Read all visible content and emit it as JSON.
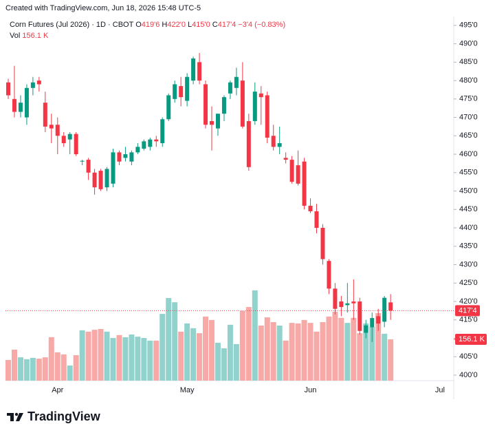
{
  "header": {
    "watermark": "Created with TradingView.com, Jun 18, 2026 15:48 UTC-5",
    "symbol": "Corn Futures (Jul 2026) · 1D · CBOT",
    "open_label": "O",
    "open": "419'6",
    "high_label": "H",
    "high": "422'0",
    "low_label": "L",
    "low": "415'0",
    "close_label": "C",
    "close": "417'4",
    "change": "−3'4 (−0.83%)",
    "volume_label": "Vol"
  },
  "footer": {
    "logo": "TradingView"
  },
  "chart_data": {
    "type": "candlestick",
    "categories": [
      null,
      null,
      null,
      null,
      null,
      null,
      null,
      null,
      "Apr",
      null,
      null,
      null,
      null,
      null,
      null,
      null,
      null,
      null,
      null,
      null,
      null,
      null,
      null,
      null,
      null,
      null,
      null,
      null,
      null,
      "May",
      null,
      null,
      null,
      null,
      null,
      null,
      null,
      null,
      null,
      null,
      null,
      null,
      null,
      null,
      null,
      null,
      null,
      null,
      null,
      "Jun",
      null,
      null,
      null,
      null,
      null,
      null,
      null,
      null,
      null,
      null,
      null,
      null,
      null,
      null,
      null,
      null,
      null,
      null,
      null,
      null,
      "Jul"
    ],
    "open": [
      479.5,
      475,
      471.5,
      470,
      478,
      480,
      474,
      468,
      468,
      465,
      464,
      465.5,
      458,
      458.5,
      455,
      455.5,
      451,
      452,
      460.5,
      459,
      458,
      460.5,
      461.5,
      462,
      464,
      463,
      469.5,
      475,
      478.5,
      474.5,
      480,
      485,
      479,
      469,
      467,
      471,
      476.5,
      478,
      480,
      469,
      469,
      476.5,
      476,
      465,
      462,
      459,
      458.5,
      457,
      458,
      446,
      444.5,
      440,
      431,
      423.5,
      420,
      419,
      420,
      420,
      411.5,
      413,
      416,
      414.5,
      419.75,
      null,
      null,
      null,
      null,
      null,
      null,
      null,
      null
    ],
    "high": [
      480.5,
      484,
      476,
      479,
      481,
      481,
      477,
      471,
      470,
      466,
      466,
      466,
      458.5,
      459,
      456,
      456,
      456.5,
      461.5,
      461,
      462,
      461,
      463,
      464,
      464.5,
      465,
      470,
      476.5,
      480,
      481,
      482,
      486.5,
      487.5,
      480,
      473,
      471,
      476,
      480,
      483.5,
      485,
      471,
      479.5,
      478.5,
      477,
      468,
      467.5,
      460.5,
      459.5,
      461,
      459,
      448,
      446.5,
      441,
      431.5,
      425,
      421.5,
      425,
      426,
      421,
      415,
      417,
      418,
      421.5,
      422,
      null,
      null,
      null,
      null,
      null,
      null,
      null,
      null
    ],
    "low": [
      475,
      470,
      470,
      468,
      476,
      477,
      466,
      463,
      460,
      462,
      460,
      459.5,
      457,
      453,
      449,
      450,
      450,
      451,
      457,
      458,
      457,
      460,
      461,
      461,
      462,
      462,
      469,
      474,
      473,
      473,
      479,
      479,
      467,
      461,
      465,
      469,
      475,
      476,
      467,
      455.5,
      468,
      468,
      463,
      461,
      460,
      457.5,
      452,
      451.5,
      445,
      444,
      438.5,
      430,
      422,
      416.5,
      416,
      417,
      415,
      411,
      410,
      409,
      412,
      413,
      415,
      null,
      null,
      null,
      null,
      null,
      null,
      null,
      null
    ],
    "close": [
      476,
      471.5,
      474,
      478,
      479.5,
      479,
      467.5,
      467,
      465,
      463,
      465.5,
      460,
      458.2,
      455,
      451,
      450.5,
      456,
      460.5,
      458,
      460,
      460.5,
      462,
      463.5,
      464,
      463.5,
      469.5,
      476,
      479,
      475.5,
      481,
      486,
      480,
      468,
      468,
      471,
      475.5,
      479.5,
      481,
      467.5,
      456.5,
      477,
      475.5,
      464.5,
      462,
      463,
      458.5,
      452.5,
      452,
      446,
      444.5,
      440,
      431.5,
      423.5,
      418,
      418.5,
      419.5,
      419.5,
      412,
      413.5,
      415.5,
      414,
      421,
      417.5,
      null,
      null,
      null,
      null,
      null,
      null,
      null,
      null
    ],
    "volume": [
      78,
      117,
      88,
      81,
      86,
      83,
      88,
      164,
      107,
      99,
      57,
      96,
      190,
      185,
      192,
      195,
      185,
      161,
      172,
      164,
      174,
      166,
      161,
      151,
      151,
      252,
      312,
      296,
      185,
      216,
      198,
      179,
      242,
      229,
      143,
      122,
      211,
      138,
      263,
      278,
      341,
      208,
      239,
      221,
      208,
      151,
      218,
      216,
      229,
      218,
      185,
      221,
      242,
      260,
      237,
      218,
      237,
      179,
      216,
      203,
      255,
      177,
      156.1,
      null,
      null,
      null,
      null,
      null,
      null,
      null,
      null
    ],
    "ylim": [
      398.5,
      497.4
    ],
    "yticks": [
      {
        "value": 400,
        "label": "400'0"
      },
      {
        "value": 405,
        "label": "405'0"
      },
      {
        "value": 410,
        "label": "410'0"
      },
      {
        "value": 415,
        "label": "415'0"
      },
      {
        "value": 420,
        "label": "420'0"
      },
      {
        "value": 425,
        "label": "425'0"
      },
      {
        "value": 430,
        "label": "430'0"
      },
      {
        "value": 435,
        "label": "435'0"
      },
      {
        "value": 440,
        "label": "440'0"
      },
      {
        "value": 445,
        "label": "445'0"
      },
      {
        "value": 450,
        "label": "450'0"
      },
      {
        "value": 455,
        "label": "455'0"
      },
      {
        "value": 460,
        "label": "460'0"
      },
      {
        "value": 465,
        "label": "465'0"
      },
      {
        "value": 470,
        "label": "470'0"
      },
      {
        "value": 475,
        "label": "475'0"
      },
      {
        "value": 480,
        "label": "480'0"
      },
      {
        "value": 485,
        "label": "485'0"
      },
      {
        "value": 490,
        "label": "490'0"
      },
      {
        "value": 495,
        "label": "495'0"
      }
    ],
    "volume_ylim": [
      0,
      1375
    ],
    "last_price": {
      "value": 417.5,
      "label": "417'4"
    },
    "last_volume": {
      "value": 156.1,
      "label": "156.1 K"
    },
    "up_color": "#089981",
    "down_color": "#f23645",
    "volume_up_color": "#92d2cc",
    "volume_down_color": "#f7a9a7"
  }
}
